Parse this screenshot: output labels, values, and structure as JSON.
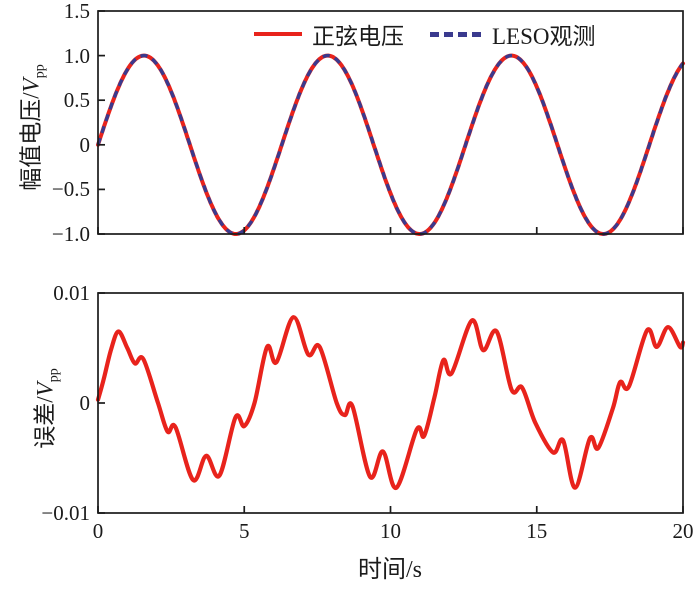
{
  "figure": {
    "background": "#ffffff",
    "frame_color": "#1b1b1b",
    "text_color": "#1b1b1b"
  },
  "legend": {
    "items": [
      {
        "label": "正弦电压",
        "color": "#e8231c",
        "line_style": "solid"
      },
      {
        "label": "LESO观测",
        "color": "#3a3a8e",
        "line_style": "dashed"
      }
    ]
  },
  "chart_data": [
    {
      "type": "line",
      "title": "",
      "xlabel": "",
      "ylabel": "幅值电压/Vpp",
      "ylabel_parts": {
        "prefix": "幅值电压/",
        "symbol": "V",
        "sub": "pp"
      },
      "xlim": [
        0,
        20
      ],
      "ylim": [
        -1.0,
        1.5
      ],
      "xticks": [
        0,
        5,
        10,
        15,
        20
      ],
      "xtick_labels_shown": false,
      "yticks": [
        -1.0,
        -0.5,
        0,
        0.5,
        1.0,
        1.5
      ],
      "ytick_labels": [
        "−1.0",
        "−0.5",
        "0",
        "0.5",
        "1.0",
        "1.5"
      ],
      "grid": false,
      "legend_position": "inside top center",
      "series": [
        {
          "name": "正弦电压",
          "color": "#e8231c",
          "style": "solid",
          "model": "y = A*sin(w*t + p)",
          "amplitude": 1.0,
          "angular_frequency_rad_per_s": 1.0,
          "phase_rad": 0,
          "peaks_at_t_s": [
            1.57,
            7.85,
            14.14
          ],
          "troughs_at_t_s": [
            4.71,
            11.0,
            17.28
          ]
        },
        {
          "name": "LESO观测",
          "color": "#3a3a8e",
          "style": "dashed",
          "model": "y = A*sin(w*t + p), coincides with 正弦电压",
          "amplitude": 1.0,
          "angular_frequency_rad_per_s": 1.0,
          "phase_rad": 0
        }
      ]
    },
    {
      "type": "line",
      "title": "",
      "xlabel": "时间/s",
      "ylabel": "误差/Vpp",
      "ylabel_parts": {
        "prefix": "误差/",
        "symbol": "V",
        "sub": "pp"
      },
      "xlim": [
        0,
        20
      ],
      "ylim": [
        -0.01,
        0.01
      ],
      "xticks": [
        0,
        5,
        10,
        15,
        20
      ],
      "xtick_labels": [
        "0",
        "5",
        "10",
        "15",
        "20"
      ],
      "yticks": [
        -0.01,
        0,
        0.01
      ],
      "ytick_labels": [
        "−0.01",
        "0",
        "0.01"
      ],
      "grid": false,
      "series": [
        {
          "name": "误差",
          "color": "#e8231c",
          "style": "solid",
          "interpolation": "smooth",
          "x_keypoints_s": [
            0,
            0.2,
            0.45,
            0.7,
            1.0,
            1.26,
            1.55,
            2.05,
            2.38,
            2.65,
            3.25,
            3.7,
            4.15,
            4.7,
            5.0,
            5.35,
            5.78,
            6.1,
            6.68,
            7.19,
            7.58,
            8.16,
            8.44,
            8.7,
            9.3,
            9.74,
            10.2,
            10.9,
            11.15,
            11.5,
            11.81,
            12.09,
            12.78,
            13.17,
            13.63,
            14.14,
            14.5,
            14.95,
            15.56,
            15.9,
            16.31,
            16.82,
            17.1,
            17.6,
            17.85,
            18.15,
            18.77,
            19.1,
            19.49,
            19.9,
            20.0
          ],
          "y_keypoints_Vpp": [
            0.0003,
            0.0022,
            0.0049,
            0.0065,
            0.005,
            0.0036,
            0.004,
            0.0,
            -0.0026,
            -0.0022,
            -0.007,
            -0.0048,
            -0.0066,
            -0.0013,
            -0.0021,
            0.0,
            0.0051,
            0.0037,
            0.0078,
            0.0044,
            0.0051,
            0.0,
            -0.0011,
            -0.0003,
            -0.0067,
            -0.0044,
            -0.0077,
            -0.0024,
            -0.003,
            0.0005,
            0.0039,
            0.0027,
            0.0075,
            0.0048,
            0.0065,
            0.0012,
            0.0014,
            -0.0018,
            -0.0045,
            -0.0034,
            -0.0077,
            -0.0032,
            -0.0041,
            -0.0005,
            0.0019,
            0.0015,
            0.0066,
            0.0051,
            0.0069,
            0.0051,
            0.0055
          ]
        }
      ]
    }
  ]
}
